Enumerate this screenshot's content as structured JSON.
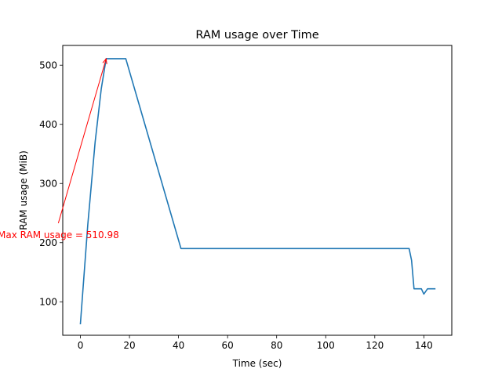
{
  "chart_data": {
    "type": "line",
    "title": "RAM usage over Time",
    "xlabel": "Time (sec)",
    "ylabel": "RAM usage (MiB)",
    "xlim": [
      -7.2,
      151.4
    ],
    "ylim": [
      43.4,
      533.4
    ],
    "xticks": [
      0,
      20,
      40,
      60,
      80,
      100,
      120,
      140
    ],
    "yticks": [
      100,
      200,
      300,
      400,
      500
    ],
    "grid": false,
    "series": [
      {
        "color": "#1f77b4",
        "x": [
          0,
          3,
          6,
          8.5,
          10.5,
          13,
          16,
          18.5,
          41,
          60,
          80,
          100,
          120,
          134,
          135,
          136,
          139,
          140,
          141.5,
          144.5
        ],
        "y": [
          63,
          230,
          370,
          460,
          510.98,
          510.98,
          510.98,
          510.98,
          190,
          190,
          190,
          190,
          190,
          190,
          170,
          122,
          122,
          113,
          122,
          122
        ]
      }
    ],
    "annotations": [
      {
        "text": "Max RAM usage = 510.98",
        "color": "#ff0000",
        "point": [
          10.5,
          510.98
        ],
        "text_at": [
          -9,
          213
        ],
        "arrow_tail": [
          -9,
          233
        ]
      }
    ]
  }
}
